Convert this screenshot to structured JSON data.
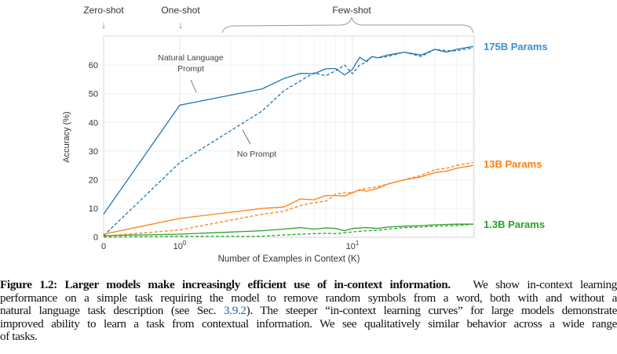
{
  "chart_data": {
    "type": "line",
    "xlabel": "Number of Examples in Context  (K)",
    "ylabel": "Accuracy (%)",
    "x_scale": "log (with 0 shown at left)",
    "xlim": [
      0,
      50
    ],
    "ylim": [
      0,
      70
    ],
    "x_ticks": [
      {
        "value": 0,
        "label": "0"
      },
      {
        "value": 1,
        "base": "10",
        "exp": "0"
      },
      {
        "value": 10,
        "base": "10",
        "exp": "1"
      }
    ],
    "y_ticks": [
      0,
      10,
      20,
      30,
      40,
      50,
      60
    ],
    "grid": true,
    "annotations": {
      "zero_shot": "Zero-shot",
      "one_shot": "One-shot",
      "few_shot": "Few-shot",
      "arrow": "↓",
      "nl_prompt_line1": "Natural Language",
      "nl_prompt_line2": "Prompt",
      "no_prompt": "No Prompt"
    },
    "groups": [
      {
        "label": "175B Params",
        "color": "#1f77b4",
        "label_color": "#3a8fd0"
      },
      {
        "label": "13B Params",
        "color": "#ff7f0e",
        "label_color": "#ff7f0e"
      },
      {
        "label": "1.3B Params",
        "color": "#2ca02c",
        "label_color": "#22a528"
      }
    ],
    "series": [
      {
        "group": 0,
        "style": "solid",
        "prompt": "Natural Language Prompt",
        "x": [
          0,
          1,
          3,
          4,
          5,
          6,
          7,
          8,
          9,
          10,
          11,
          12,
          13,
          14,
          16,
          20,
          25,
          30,
          35,
          40,
          50
        ],
        "y": [
          8,
          46,
          51.7,
          55.3,
          57.1,
          57,
          58.7,
          58.8,
          56.5,
          58.5,
          62.7,
          61.3,
          63,
          62.5,
          63.5,
          64.5,
          63.5,
          65.5,
          64.5,
          65.5,
          66.5
        ]
      },
      {
        "group": 0,
        "style": "dashed",
        "prompt": "No Prompt",
        "x": [
          0,
          1,
          3,
          4,
          5,
          6,
          7,
          8,
          9,
          10,
          11,
          12,
          13,
          14,
          16,
          20,
          25,
          30,
          35,
          40,
          50
        ],
        "y": [
          0.5,
          26,
          44,
          51,
          54.5,
          57.3,
          56.3,
          58,
          60,
          57,
          60,
          61,
          63,
          62.5,
          63,
          64.5,
          63,
          65.5,
          65,
          65,
          66
        ]
      },
      {
        "group": 1,
        "style": "solid",
        "prompt": "Natural Language Prompt",
        "x": [
          0,
          1,
          3,
          4,
          5,
          6,
          7,
          8,
          9,
          10,
          11,
          12,
          14,
          16,
          20,
          25,
          30,
          35,
          40,
          50
        ],
        "y": [
          1,
          6.5,
          10,
          10.5,
          13.3,
          13,
          14.5,
          14.5,
          14.3,
          15.5,
          16.5,
          16,
          17,
          18.5,
          20,
          21,
          22.5,
          23,
          24,
          25
        ]
      },
      {
        "group": 1,
        "style": "dashed",
        "prompt": "No Prompt",
        "x": [
          0,
          1,
          3,
          4,
          5,
          6,
          7,
          8,
          9,
          10,
          12,
          14,
          16,
          20,
          25,
          30,
          35,
          40,
          50
        ],
        "y": [
          0.3,
          2.5,
          8,
          9,
          11,
          12,
          12.5,
          15,
          15.5,
          15.5,
          17,
          17.5,
          18.5,
          20,
          21.5,
          23.5,
          24,
          25,
          26
        ]
      },
      {
        "group": 2,
        "style": "solid",
        "prompt": "Natural Language Prompt",
        "x": [
          0,
          1,
          3,
          4,
          5,
          6,
          7,
          8,
          9,
          10,
          12,
          14,
          16,
          20,
          25,
          30,
          40,
          50
        ],
        "y": [
          0.5,
          1,
          2.2,
          2.8,
          3.3,
          2.8,
          3.2,
          3,
          2.2,
          3,
          3.3,
          3,
          3.5,
          3.8,
          4,
          4.3,
          4.5,
          4.5
        ]
      },
      {
        "group": 2,
        "style": "dashed",
        "prompt": "No Prompt",
        "x": [
          0,
          1,
          3,
          4,
          5,
          6,
          7,
          8,
          9,
          10,
          12,
          14,
          16,
          20,
          25,
          30,
          40,
          50
        ],
        "y": [
          0,
          0.3,
          0.3,
          0.7,
          1,
          1.2,
          1.3,
          1.2,
          1.5,
          1.8,
          2.2,
          2.3,
          2.8,
          3.3,
          3.5,
          3.8,
          4,
          4.5
        ]
      }
    ]
  },
  "caption": {
    "line1_bold": "Figure 1.2: Larger models make increasingly efficient use of in-context information.",
    "line1_rest": "We show in-context learning",
    "line2": "performance on a simple task requiring the model to remove random symbols from a word, both with and without a",
    "line3_pre": "natural language task description (see Sec.",
    "line3_ref": "3.9.2",
    "line3_post": "). The steeper “in-context learning curves” for large models demonstrate",
    "line4": "improved ability to learn a task from contextual information. We see qualitatively similar behavior across a wide range",
    "line5": "of tasks."
  }
}
